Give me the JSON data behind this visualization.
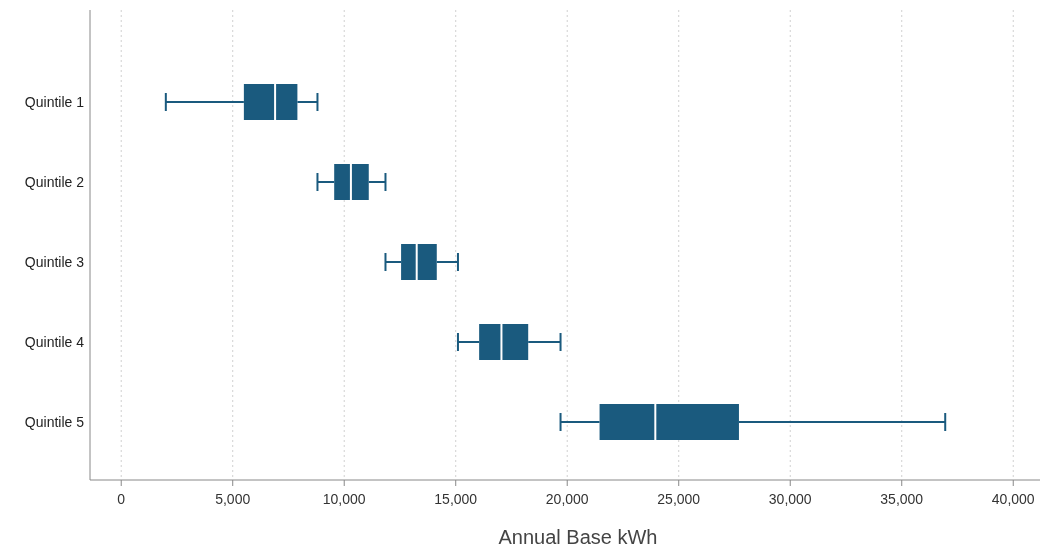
{
  "chart_data": {
    "type": "box",
    "orientation": "horizontal",
    "xlabel": "Annual Base kWh",
    "categories": [
      "Quintile 1",
      "Quintile 2",
      "Quintile 3",
      "Quintile 4",
      "Quintile 5"
    ],
    "color": "#1a5a7e",
    "xlim": [
      -1400,
      41200
    ],
    "xticks": [
      {
        "value": 0,
        "label": "0"
      },
      {
        "value": 5000,
        "label": "5,000"
      },
      {
        "value": 10000,
        "label": "10,000"
      },
      {
        "value": 15000,
        "label": "15,000"
      },
      {
        "value": 20000,
        "label": "20,000"
      },
      {
        "value": 25000,
        "label": "25,000"
      },
      {
        "value": 30000,
        "label": "30,000"
      },
      {
        "value": 35000,
        "label": "35,000"
      },
      {
        "value": 40000,
        "label": "40,000"
      }
    ],
    "grid": "x",
    "boxes": [
      {
        "low": 2000,
        "q1": 5500,
        "median": 6900,
        "q3": 7900,
        "high": 8800
      },
      {
        "low": 8800,
        "q1": 9550,
        "median": 10300,
        "q3": 11100,
        "high": 11850
      },
      {
        "low": 11850,
        "q1": 12550,
        "median": 13250,
        "q3": 14150,
        "high": 15100
      },
      {
        "low": 15100,
        "q1": 16050,
        "median": 17050,
        "q3": 18250,
        "high": 19700
      },
      {
        "low": 19700,
        "q1": 21450,
        "median": 23950,
        "q3": 27700,
        "high": 36950
      }
    ]
  }
}
